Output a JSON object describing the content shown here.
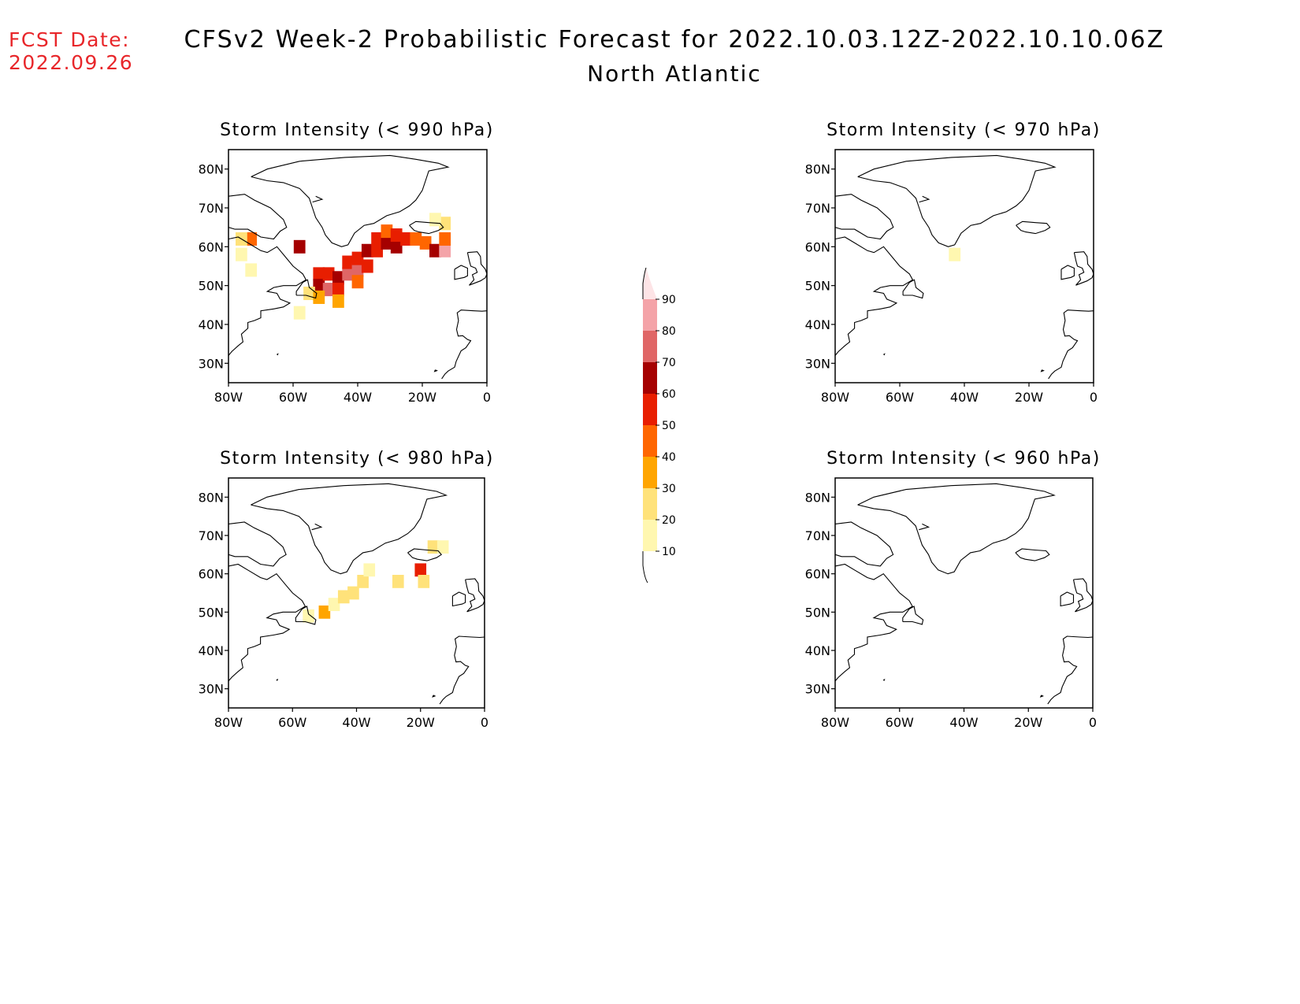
{
  "header": {
    "fcst_label": "FCST Date:",
    "fcst_date": "2022.09.26",
    "title": "CFSv2 Week-2 Probabilistic Forecast for 2022.10.03.12Z-2022.10.10.06Z",
    "subtitle": "North Atlantic"
  },
  "axes": {
    "lon_ticks": [
      "80W",
      "60W",
      "40W",
      "20W",
      "0"
    ],
    "lat_ticks": [
      "80N",
      "70N",
      "60N",
      "50N",
      "40N",
      "30N"
    ],
    "lon_range": [
      -80,
      0
    ],
    "lat_range": [
      25,
      85
    ]
  },
  "panels": [
    {
      "title": "Storm Intensity (< 990 hPa)",
      "cells": [
        {
          "lon": -52,
          "lat": 53,
          "p": 55
        },
        {
          "lon": -52,
          "lat": 50,
          "p": 65
        },
        {
          "lon": -49,
          "lat": 49,
          "p": 75
        },
        {
          "lon": -49,
          "lat": 53,
          "p": 50
        },
        {
          "lon": -46,
          "lat": 52,
          "p": 65
        },
        {
          "lon": -46,
          "lat": 49,
          "p": 55
        },
        {
          "lon": -43,
          "lat": 53,
          "p": 70
        },
        {
          "lon": -43,
          "lat": 56,
          "p": 50
        },
        {
          "lon": -40,
          "lat": 54,
          "p": 75
        },
        {
          "lon": -40,
          "lat": 57,
          "p": 55
        },
        {
          "lon": -37,
          "lat": 59,
          "p": 65
        },
        {
          "lon": -37,
          "lat": 55,
          "p": 55
        },
        {
          "lon": -34,
          "lat": 59,
          "p": 55
        },
        {
          "lon": -34,
          "lat": 62,
          "p": 50
        },
        {
          "lon": -31,
          "lat": 61,
          "p": 60
        },
        {
          "lon": -31,
          "lat": 64,
          "p": 40
        },
        {
          "lon": -28,
          "lat": 60,
          "p": 65
        },
        {
          "lon": -28,
          "lat": 63,
          "p": 55
        },
        {
          "lon": -25,
          "lat": 62,
          "p": 55
        },
        {
          "lon": -19,
          "lat": 61,
          "p": 45
        },
        {
          "lon": -16,
          "lat": 59,
          "p": 65
        },
        {
          "lon": -13,
          "lat": 59,
          "p": 85
        },
        {
          "lon": -13,
          "lat": 62,
          "p": 45
        },
        {
          "lon": -13,
          "lat": 66,
          "p": 25
        },
        {
          "lon": -16,
          "lat": 67,
          "p": 15
        },
        {
          "lon": -22,
          "lat": 62,
          "p": 40
        },
        {
          "lon": -55,
          "lat": 48,
          "p": 20
        },
        {
          "lon": -52,
          "lat": 47,
          "p": 35
        },
        {
          "lon": -46,
          "lat": 46,
          "p": 30
        },
        {
          "lon": -40,
          "lat": 51,
          "p": 40
        },
        {
          "lon": -58,
          "lat": 60,
          "p": 65
        },
        {
          "lon": -73,
          "lat": 62,
          "p": 40
        },
        {
          "lon": -76,
          "lat": 62,
          "p": 20
        },
        {
          "lon": -76,
          "lat": 58,
          "p": 15
        },
        {
          "lon": -73,
          "lat": 54,
          "p": 12
        },
        {
          "lon": -58,
          "lat": 43,
          "p": 12
        }
      ]
    },
    {
      "title": "Storm Intensity (< 970 hPa)",
      "cells": [
        {
          "lon": -43,
          "lat": 58,
          "p": 15
        }
      ]
    },
    {
      "title": "Storm Intensity (< 980 hPa)",
      "cells": [
        {
          "lon": -50,
          "lat": 50,
          "p": 30
        },
        {
          "lon": -47,
          "lat": 52,
          "p": 15
        },
        {
          "lon": -44,
          "lat": 54,
          "p": 20
        },
        {
          "lon": -41,
          "lat": 55,
          "p": 25
        },
        {
          "lon": -38,
          "lat": 58,
          "p": 20
        },
        {
          "lon": -36,
          "lat": 61,
          "p": 15
        },
        {
          "lon": -27,
          "lat": 58,
          "p": 20
        },
        {
          "lon": -20,
          "lat": 61,
          "p": 55
        },
        {
          "lon": -19,
          "lat": 58,
          "p": 25
        },
        {
          "lon": -16,
          "lat": 67,
          "p": 20
        },
        {
          "lon": -13,
          "lat": 67,
          "p": 15
        },
        {
          "lon": -55,
          "lat": 49,
          "p": 12
        }
      ]
    },
    {
      "title": "Storm Intensity (< 960 hPa)",
      "cells": []
    }
  ],
  "colorbar": {
    "levels": [
      10,
      20,
      30,
      40,
      50,
      60,
      70,
      80,
      90
    ],
    "labels": [
      "10",
      "20",
      "30",
      "40",
      "50",
      "60",
      "70",
      "80",
      "90"
    ],
    "colors": [
      "#ffffff",
      "#fff7b0",
      "#ffe27a",
      "#ffa500",
      "#ff6600",
      "#e81e00",
      "#a50000",
      "#e06666",
      "#f4a3a8",
      "#fde4e6"
    ]
  },
  "colors": {
    "fcst_date": "#e8262a",
    "coastline": "#000000"
  }
}
